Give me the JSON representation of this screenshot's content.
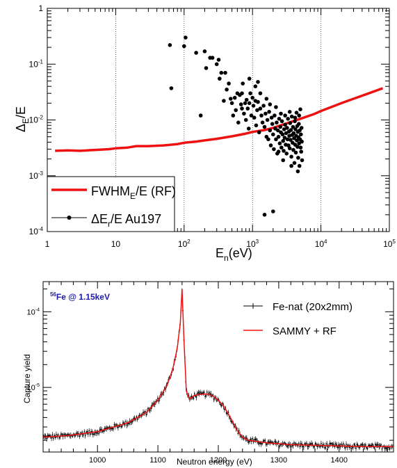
{
  "chart_data": [
    {
      "type": "scatter",
      "xscale": "log",
      "yscale": "log",
      "xlim": [
        1,
        100000
      ],
      "ylim": [
        0.0001,
        1
      ],
      "xlabel": "E_n(eV)",
      "ylabel": "Δ_E/E",
      "x_ticks": [
        "1",
        "10",
        "10^2",
        "10^3",
        "10^4",
        "10^5"
      ],
      "y_ticks": [
        "10^-4",
        "10^-3",
        "10^-2",
        "10^-1",
        "1"
      ],
      "vertical_gridlines_at": [
        10,
        100,
        1000,
        10000
      ],
      "legend_placement": "bottom-left",
      "series": [
        {
          "name": "FWHM_E/E (RF)",
          "kind": "line",
          "color": "#ee1111",
          "x": [
            1.3,
            2,
            3,
            5,
            8,
            10,
            15,
            20,
            30,
            50,
            80,
            100,
            150,
            200,
            300,
            500,
            800,
            1000,
            1500,
            2000,
            3000,
            5000,
            8000,
            10000,
            15000,
            20000,
            30000,
            50000,
            80000
          ],
          "y": [
            0.0028,
            0.00285,
            0.0028,
            0.0029,
            0.003,
            0.0031,
            0.0032,
            0.0034,
            0.0034,
            0.0035,
            0.0037,
            0.0039,
            0.0041,
            0.0043,
            0.0046,
            0.0051,
            0.0057,
            0.0061,
            0.0066,
            0.0072,
            0.0085,
            0.0105,
            0.0128,
            0.0145,
            0.0175,
            0.02,
            0.024,
            0.03,
            0.037
          ]
        },
        {
          "name": "ΔE_r/E Au197",
          "kind": "scatter",
          "color": "#000000",
          "points": [
            [
              62,
              0.22
            ],
            [
              65,
              0.037
            ],
            [
              105,
              0.3
            ],
            [
              100,
              0.21
            ],
            [
              150,
              0.16
            ],
            [
              175,
              0.012
            ],
            [
              200,
              0.17
            ],
            [
              210,
              0.085
            ],
            [
              240,
              0.13
            ],
            [
              260,
              0.13
            ],
            [
              300,
              0.1
            ],
            [
              320,
              0.12
            ],
            [
              330,
              0.055
            ],
            [
              350,
              0.07
            ],
            [
              380,
              0.022
            ],
            [
              400,
              0.07
            ],
            [
              420,
              0.035
            ],
            [
              450,
              0.045
            ],
            [
              480,
              0.024
            ],
            [
              500,
              0.02
            ],
            [
              520,
              0.012
            ],
            [
              550,
              0.025
            ],
            [
              570,
              0.015
            ],
            [
              600,
              0.03
            ],
            [
              620,
              0.009
            ],
            [
              650,
              0.028
            ],
            [
              680,
              0.019
            ],
            [
              700,
              0.03
            ],
            [
              720,
              0.045
            ],
            [
              750,
              0.013
            ],
            [
              780,
              0.02
            ],
            [
              800,
              0.01
            ],
            [
              820,
              0.023
            ],
            [
              850,
              0.016
            ],
            [
              880,
              0.007
            ],
            [
              900,
              0.02
            ],
            [
              930,
              0.03
            ],
            [
              960,
              0.012
            ],
            [
              1000,
              0.025
            ],
            [
              1030,
              0.018
            ],
            [
              1060,
              0.011
            ],
            [
              1100,
              0.022
            ],
            [
              1130,
              0.008
            ],
            [
              1170,
              0.015
            ],
            [
              1200,
              0.021
            ],
            [
              1250,
              0.006
            ],
            [
              1300,
              0.016
            ],
            [
              1350,
              0.012
            ],
            [
              1400,
              0.009
            ],
            [
              1450,
              0.018
            ],
            [
              1500,
              0.0075
            ],
            [
              1550,
              0.013
            ],
            [
              1600,
              0.005
            ],
            [
              1650,
              0.01
            ],
            [
              1700,
              0.0045
            ],
            [
              1750,
              0.014
            ],
            [
              1800,
              0.0065
            ],
            [
              1850,
              0.0035
            ],
            [
              1900,
              0.011
            ],
            [
              1950,
              0.0085
            ],
            [
              2000,
              0.0055
            ],
            [
              2050,
              0.003
            ],
            [
              2100,
              0.012
            ],
            [
              2150,
              0.007
            ],
            [
              2200,
              0.0045
            ],
            [
              2250,
              0.009
            ],
            [
              2300,
              0.0025
            ],
            [
              2350,
              0.0065
            ],
            [
              2400,
              0.005
            ],
            [
              2450,
              0.0105
            ],
            [
              2500,
              0.0038
            ],
            [
              2550,
              0.0075
            ],
            [
              2600,
              0.006
            ],
            [
              2650,
              0.0032
            ],
            [
              2700,
              0.0095
            ],
            [
              2750,
              0.0055
            ],
            [
              2800,
              0.0042
            ],
            [
              2850,
              0.0028
            ],
            [
              2900,
              0.0068
            ],
            [
              2950,
              0.0048
            ],
            [
              3000,
              0.0082
            ],
            [
              3050,
              0.0036
            ],
            [
              3100,
              0.0058
            ],
            [
              3150,
              0.0025
            ],
            [
              3200,
              0.0072
            ],
            [
              3250,
              0.0045
            ],
            [
              3300,
              0.0105
            ],
            [
              3350,
              0.0035
            ],
            [
              3400,
              0.0062
            ],
            [
              3450,
              0.0052
            ],
            [
              3500,
              0.0031
            ],
            [
              3550,
              0.0088
            ],
            [
              3600,
              0.0044
            ],
            [
              3650,
              0.0066
            ],
            [
              3700,
              0.0022
            ],
            [
              3750,
              0.0115
            ],
            [
              3800,
              0.0054
            ],
            [
              3850,
              0.0039
            ],
            [
              3900,
              0.0075
            ],
            [
              3950,
              0.0029
            ],
            [
              4000,
              0.0058
            ],
            [
              4050,
              0.0047
            ],
            [
              4100,
              0.0017
            ],
            [
              4150,
              0.0095
            ],
            [
              4200,
              0.0036
            ],
            [
              4250,
              0.0068
            ],
            [
              4300,
              0.0026
            ],
            [
              4350,
              0.0052
            ],
            [
              4400,
              0.0135
            ],
            [
              4450,
              0.0043
            ],
            [
              4500,
              0.0078
            ],
            [
              4550,
              0.0033
            ],
            [
              4600,
              0.0061
            ],
            [
              4650,
              0.0021
            ],
            [
              4700,
              0.0049
            ],
            [
              4750,
              0.0085
            ],
            [
              4800,
              0.0038
            ],
            [
              4850,
              0.0015
            ],
            [
              4900,
              0.0065
            ],
            [
              4950,
              0.0045
            ],
            [
              5000,
              0.0155
            ],
            [
              5050,
              0.0032
            ],
            [
              5100,
              0.0055
            ],
            [
              5150,
              0.0027
            ],
            [
              5200,
              0.0072
            ],
            [
              5250,
              0.0041
            ],
            [
              5300,
              0.0019
            ],
            [
              1500,
              0.0002
            ],
            [
              2000,
              0.00023
            ],
            [
              900,
              0.055
            ],
            [
              1100,
              0.04
            ],
            [
              1300,
              0.03
            ],
            [
              1200,
              0.048
            ],
            [
              700,
              0.016
            ],
            [
              1600,
              0.024
            ],
            [
              1800,
              0.019
            ],
            [
              2200,
              0.017
            ],
            [
              2600,
              0.013
            ],
            [
              3000,
              0.012
            ],
            [
              3500,
              0.014
            ],
            [
              4200,
              0.011
            ],
            [
              4800,
              0.012
            ],
            [
              2400,
              0.0027
            ],
            [
              2800,
              0.0019
            ],
            [
              3700,
              0.0015
            ],
            [
              4600,
              0.0012
            ]
          ]
        }
      ]
    },
    {
      "type": "line",
      "title_text": "Fe @ 1.15keV",
      "title_superscript": "56",
      "title_color": "#1a1aa6",
      "xlabel": "Neutron energy (eV)",
      "ylabel": "Capture yield",
      "xlim": [
        910,
        1490
      ],
      "yscale": "log",
      "ylim": [
        1.4e-06,
        0.00025
      ],
      "x_ticks": [
        "1000",
        "1100",
        "1200",
        "1300",
        "1400"
      ],
      "y_ticks": [
        "10^-5",
        "10^-4"
      ],
      "legend_placement": "top-right",
      "series": [
        {
          "name": "Fe-nat (20x2mm)",
          "kind": "data-with-error-bars",
          "color": "#000000",
          "x": [
            910,
            950,
            1000,
            1050,
            1080,
            1100,
            1115,
            1125,
            1132,
            1137,
            1140,
            1143,
            1147,
            1152,
            1160,
            1170,
            1180,
            1190,
            1200,
            1210,
            1220,
            1230,
            1240,
            1250,
            1280,
            1320,
            1380,
            1440,
            1490
          ],
          "y": [
            2.2e-06,
            2.3e-06,
            2.6e-06,
            3.4e-06,
            4.6e-06,
            6.8e-06,
            1.05e-05,
            1.8e-05,
            3.3e-05,
            7e-05,
            0.0002,
            4.5e-05,
            9e-06,
            7e-06,
            7.8e-06,
            8.1e-06,
            8.2e-06,
            7.8e-06,
            6.8e-06,
            5.5e-06,
            4e-06,
            2.8e-06,
            2.2e-06,
            2e-06,
            1.85e-06,
            1.75e-06,
            1.7e-06,
            1.65e-06,
            1.65e-06
          ]
        },
        {
          "name": "SAMMY + RF",
          "kind": "line",
          "color": "#ee1111",
          "x": [
            910,
            950,
            1000,
            1050,
            1080,
            1100,
            1115,
            1125,
            1132,
            1137,
            1140,
            1143,
            1147,
            1152,
            1160,
            1170,
            1180,
            1190,
            1200,
            1210,
            1220,
            1230,
            1240,
            1250,
            1280,
            1320,
            1380,
            1440,
            1490
          ],
          "y": [
            2.2e-06,
            2.3e-06,
            2.6e-06,
            3.4e-06,
            4.6e-06,
            6.8e-06,
            1.05e-05,
            1.8e-05,
            3.3e-05,
            7e-05,
            0.0002,
            4.5e-05,
            9e-06,
            7e-06,
            7.8e-06,
            8.1e-06,
            8.2e-06,
            7.8e-06,
            6.8e-06,
            5.5e-06,
            4e-06,
            2.8e-06,
            2.2e-06,
            2e-06,
            1.85e-06,
            1.75e-06,
            1.7e-06,
            1.65e-06,
            1.65e-06
          ]
        }
      ]
    }
  ],
  "labels": {
    "top_ylabel_main": "Δ",
    "top_ylabel_sub": "E",
    "top_ylabel_tail": "/E",
    "top_xlabel_main": "E",
    "top_xlabel_sub": "n",
    "top_xlabel_tail": "(eV)",
    "legend_rf_main": "FWHM",
    "legend_rf_sub": "E",
    "legend_rf_tail": "/E (RF)",
    "legend_au_main": "ΔE",
    "legend_au_sub": "r",
    "legend_au_tail": "/E Au197",
    "bottom_title_sup": "56",
    "bottom_title": "Fe @ 1.15keV",
    "bottom_legend_data": "Fe-nat (20x2mm)",
    "bottom_legend_fit": "SAMMY + RF",
    "bottom_xlabel": "Neutron energy (eV)",
    "bottom_ylabel": "Capture yield"
  }
}
